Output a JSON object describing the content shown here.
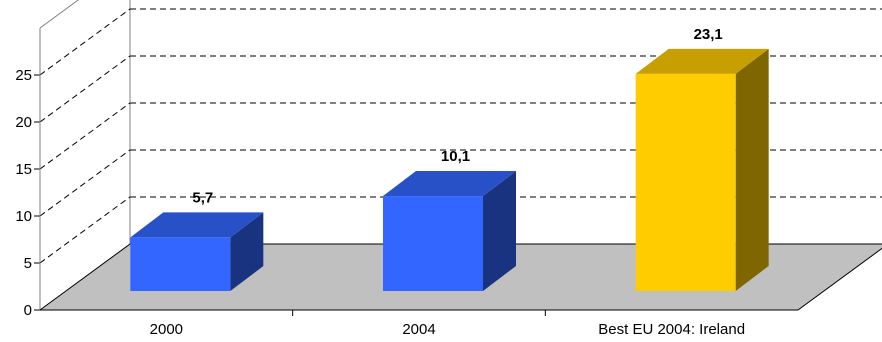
{
  "chart_data": {
    "type": "bar",
    "categories": [
      "2000",
      "2004",
      "Best EU 2004: Ireland"
    ],
    "values": [
      5.7,
      10.1,
      23.1
    ],
    "value_labels": [
      "5,7",
      "10,1",
      "23,1"
    ],
    "bar_colors": [
      "#3366ff",
      "#3366ff",
      "#ffcc00"
    ],
    "ylim": [
      0,
      25
    ],
    "yticks": [
      "0",
      "5",
      "10",
      "15",
      "20",
      "25"
    ],
    "grid": true,
    "floor_color": "#c0c0c0",
    "three_d": true
  }
}
